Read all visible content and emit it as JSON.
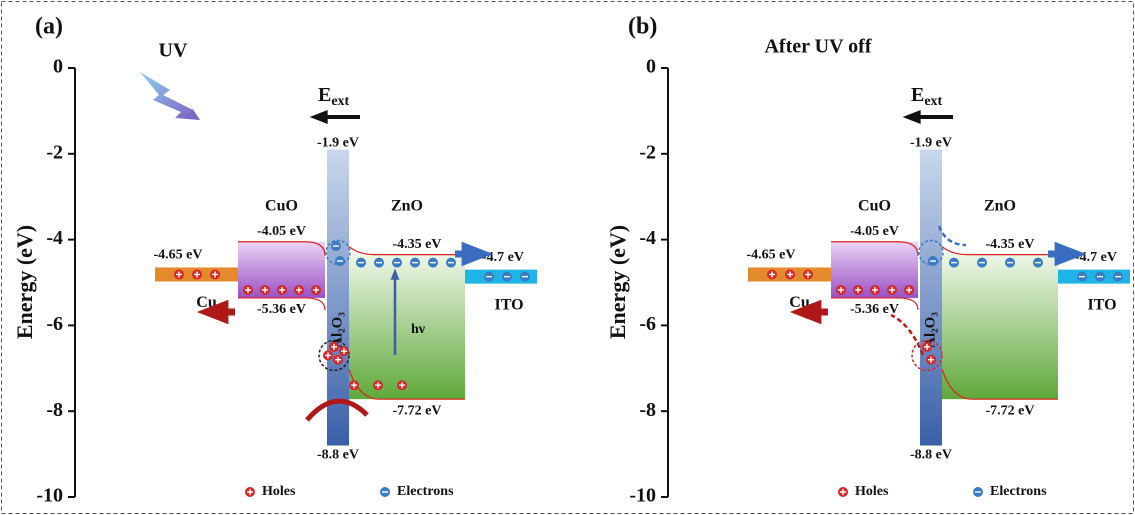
{
  "panels": [
    {
      "label": "(a)",
      "annotation": "UV",
      "field": {
        "symbol": "E",
        "subscript": "ext"
      },
      "photon": "hν",
      "axis": {
        "title": "Energy (eV)",
        "ylim": [
          -10,
          0
        ],
        "yticks": [
          0,
          -2,
          -4,
          -6,
          -8,
          -10
        ]
      },
      "materials": [
        {
          "name": "Cu",
          "level": {
            "value": -4.65,
            "label": "-4.65 eV"
          }
        },
        {
          "name": "CuO",
          "cb": {
            "value": -4.05,
            "label": "-4.05 eV"
          },
          "vb": {
            "value": -5.36,
            "label": "-5.36 eV"
          }
        },
        {
          "name": "Al₂O₃",
          "cb": {
            "value": -1.9,
            "label": "-1.9 eV"
          },
          "vb": {
            "value": -8.8,
            "label": "-8.8 eV"
          }
        },
        {
          "name": "ZnO",
          "cb": {
            "value": -4.35,
            "label": "-4.35 eV"
          },
          "vb": {
            "value": -7.72,
            "label": "-7.72 eV"
          }
        },
        {
          "name": "ITO",
          "level": {
            "value": -4.7,
            "label": "-4.7 eV"
          }
        }
      ],
      "legend": [
        "Holes",
        "Electrons"
      ]
    },
    {
      "label": "(b)",
      "annotation": "After UV off",
      "field": {
        "symbol": "E",
        "subscript": "ext"
      },
      "axis": {
        "title": "Energy (eV)",
        "ylim": [
          -10,
          0
        ],
        "yticks": [
          0,
          -2,
          -4,
          -6,
          -8,
          -10
        ]
      },
      "materials": [
        {
          "name": "Cu",
          "level": {
            "value": -4.65,
            "label": "-4.65 eV"
          }
        },
        {
          "name": "CuO",
          "cb": {
            "value": -4.05,
            "label": "-4.05 eV"
          },
          "vb": {
            "value": -5.36,
            "label": "-5.36 eV"
          }
        },
        {
          "name": "Al₂O₃",
          "cb": {
            "value": -1.9,
            "label": "-1.9 eV"
          },
          "vb": {
            "value": -8.8,
            "label": "-8.8 eV"
          }
        },
        {
          "name": "ZnO",
          "cb": {
            "value": -4.35,
            "label": "-4.35 eV"
          },
          "vb": {
            "value": -7.72,
            "label": "-7.72 eV"
          }
        },
        {
          "name": "ITO",
          "level": {
            "value": -4.7,
            "label": "-4.7 eV"
          }
        }
      ],
      "legend": [
        "Holes",
        "Electrons"
      ]
    }
  ]
}
